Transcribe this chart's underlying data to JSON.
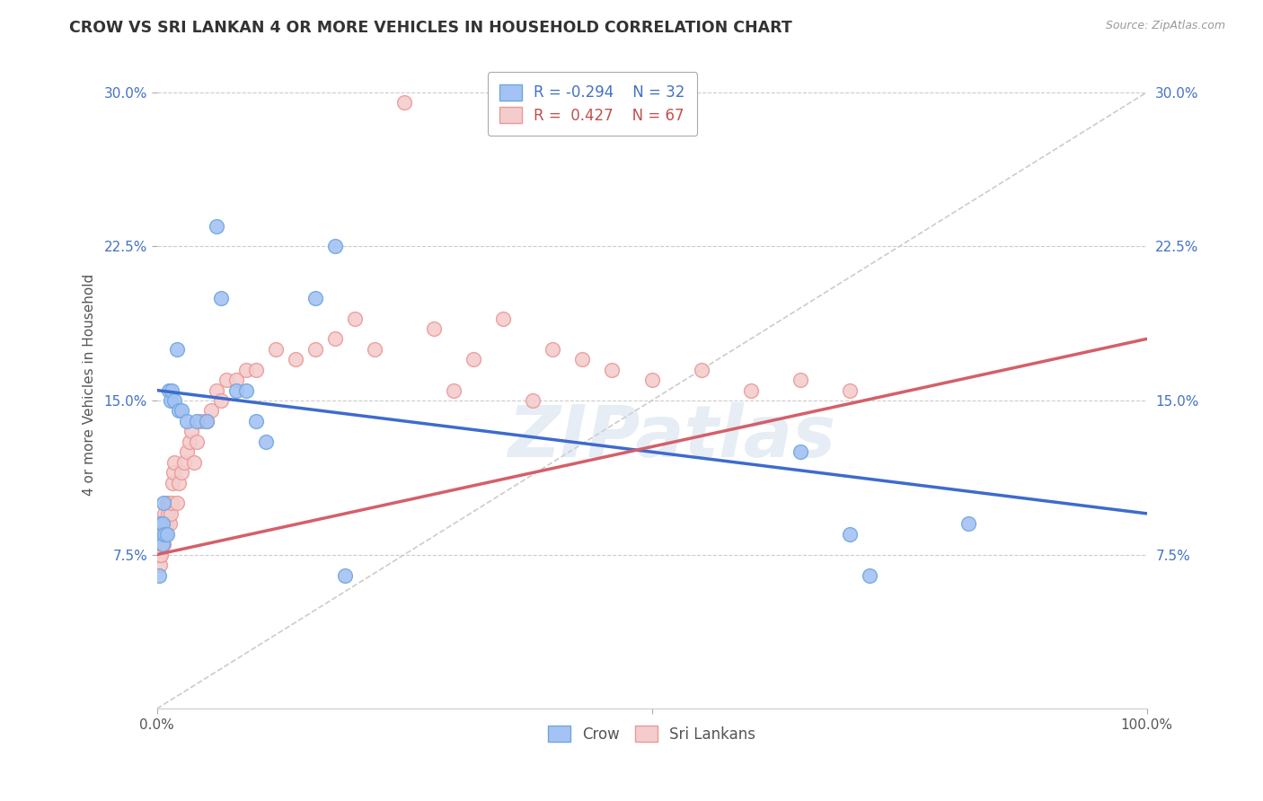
{
  "title": "CROW VS SRI LANKAN 4 OR MORE VEHICLES IN HOUSEHOLD CORRELATION CHART",
  "source": "Source: ZipAtlas.com",
  "ylabel": "4 or more Vehicles in Household",
  "xlim": [
    0.0,
    1.0
  ],
  "ylim": [
    0.0,
    0.315
  ],
  "yticks": [
    0.075,
    0.15,
    0.225,
    0.3
  ],
  "ytick_labels": [
    "7.5%",
    "15.0%",
    "22.5%",
    "30.0%"
  ],
  "xticks": [
    0.0,
    0.5,
    1.0
  ],
  "xtick_labels": [
    "0.0%",
    "",
    "100.0%"
  ],
  "crow_color": "#6fa8dc",
  "sri_color": "#ea9999",
  "crow_color_fill": "#a4c2f4",
  "sri_color_fill": "#f4cccc",
  "crow_R": -0.294,
  "crow_N": 32,
  "sri_R": 0.427,
  "sri_N": 67,
  "crow_trend_x": [
    0.0,
    1.0
  ],
  "crow_trend_y": [
    0.155,
    0.095
  ],
  "sri_trend_x": [
    0.0,
    1.0
  ],
  "sri_trend_y": [
    0.075,
    0.18
  ],
  "ref_line_x": [
    0.0,
    1.0
  ],
  "ref_line_y": [
    0.0,
    0.3
  ],
  "crow_x": [
    0.002,
    0.003,
    0.004,
    0.005,
    0.006,
    0.006,
    0.007,
    0.008,
    0.01,
    0.012,
    0.014,
    0.015,
    0.018,
    0.02,
    0.022,
    0.025,
    0.03,
    0.04,
    0.05,
    0.06,
    0.065,
    0.08,
    0.09,
    0.1,
    0.11,
    0.16,
    0.18,
    0.19,
    0.65,
    0.7,
    0.72,
    0.82
  ],
  "crow_y": [
    0.065,
    0.09,
    0.085,
    0.085,
    0.09,
    0.08,
    0.1,
    0.085,
    0.085,
    0.155,
    0.15,
    0.155,
    0.15,
    0.175,
    0.145,
    0.145,
    0.14,
    0.14,
    0.14,
    0.235,
    0.2,
    0.155,
    0.155,
    0.14,
    0.13,
    0.2,
    0.225,
    0.065,
    0.125,
    0.085,
    0.065,
    0.09
  ],
  "sri_x": [
    0.001,
    0.001,
    0.002,
    0.002,
    0.003,
    0.003,
    0.003,
    0.004,
    0.004,
    0.005,
    0.005,
    0.006,
    0.006,
    0.007,
    0.007,
    0.008,
    0.008,
    0.009,
    0.009,
    0.01,
    0.01,
    0.011,
    0.012,
    0.013,
    0.014,
    0.015,
    0.016,
    0.017,
    0.018,
    0.02,
    0.022,
    0.025,
    0.028,
    0.03,
    0.033,
    0.035,
    0.038,
    0.04,
    0.045,
    0.05,
    0.055,
    0.06,
    0.065,
    0.07,
    0.08,
    0.09,
    0.1,
    0.12,
    0.14,
    0.16,
    0.18,
    0.2,
    0.22,
    0.25,
    0.28,
    0.3,
    0.32,
    0.35,
    0.38,
    0.4,
    0.43,
    0.46,
    0.5,
    0.55,
    0.6,
    0.65,
    0.7
  ],
  "sri_y": [
    0.085,
    0.075,
    0.08,
    0.075,
    0.07,
    0.075,
    0.08,
    0.085,
    0.075,
    0.09,
    0.08,
    0.085,
    0.09,
    0.08,
    0.09,
    0.085,
    0.095,
    0.09,
    0.085,
    0.09,
    0.1,
    0.095,
    0.1,
    0.09,
    0.095,
    0.1,
    0.11,
    0.115,
    0.12,
    0.1,
    0.11,
    0.115,
    0.12,
    0.125,
    0.13,
    0.135,
    0.12,
    0.13,
    0.14,
    0.14,
    0.145,
    0.155,
    0.15,
    0.16,
    0.16,
    0.165,
    0.165,
    0.175,
    0.17,
    0.175,
    0.18,
    0.19,
    0.175,
    0.295,
    0.185,
    0.155,
    0.17,
    0.19,
    0.15,
    0.175,
    0.17,
    0.165,
    0.16,
    0.165,
    0.155,
    0.16,
    0.155
  ],
  "watermark_text": "ZIPatlas"
}
